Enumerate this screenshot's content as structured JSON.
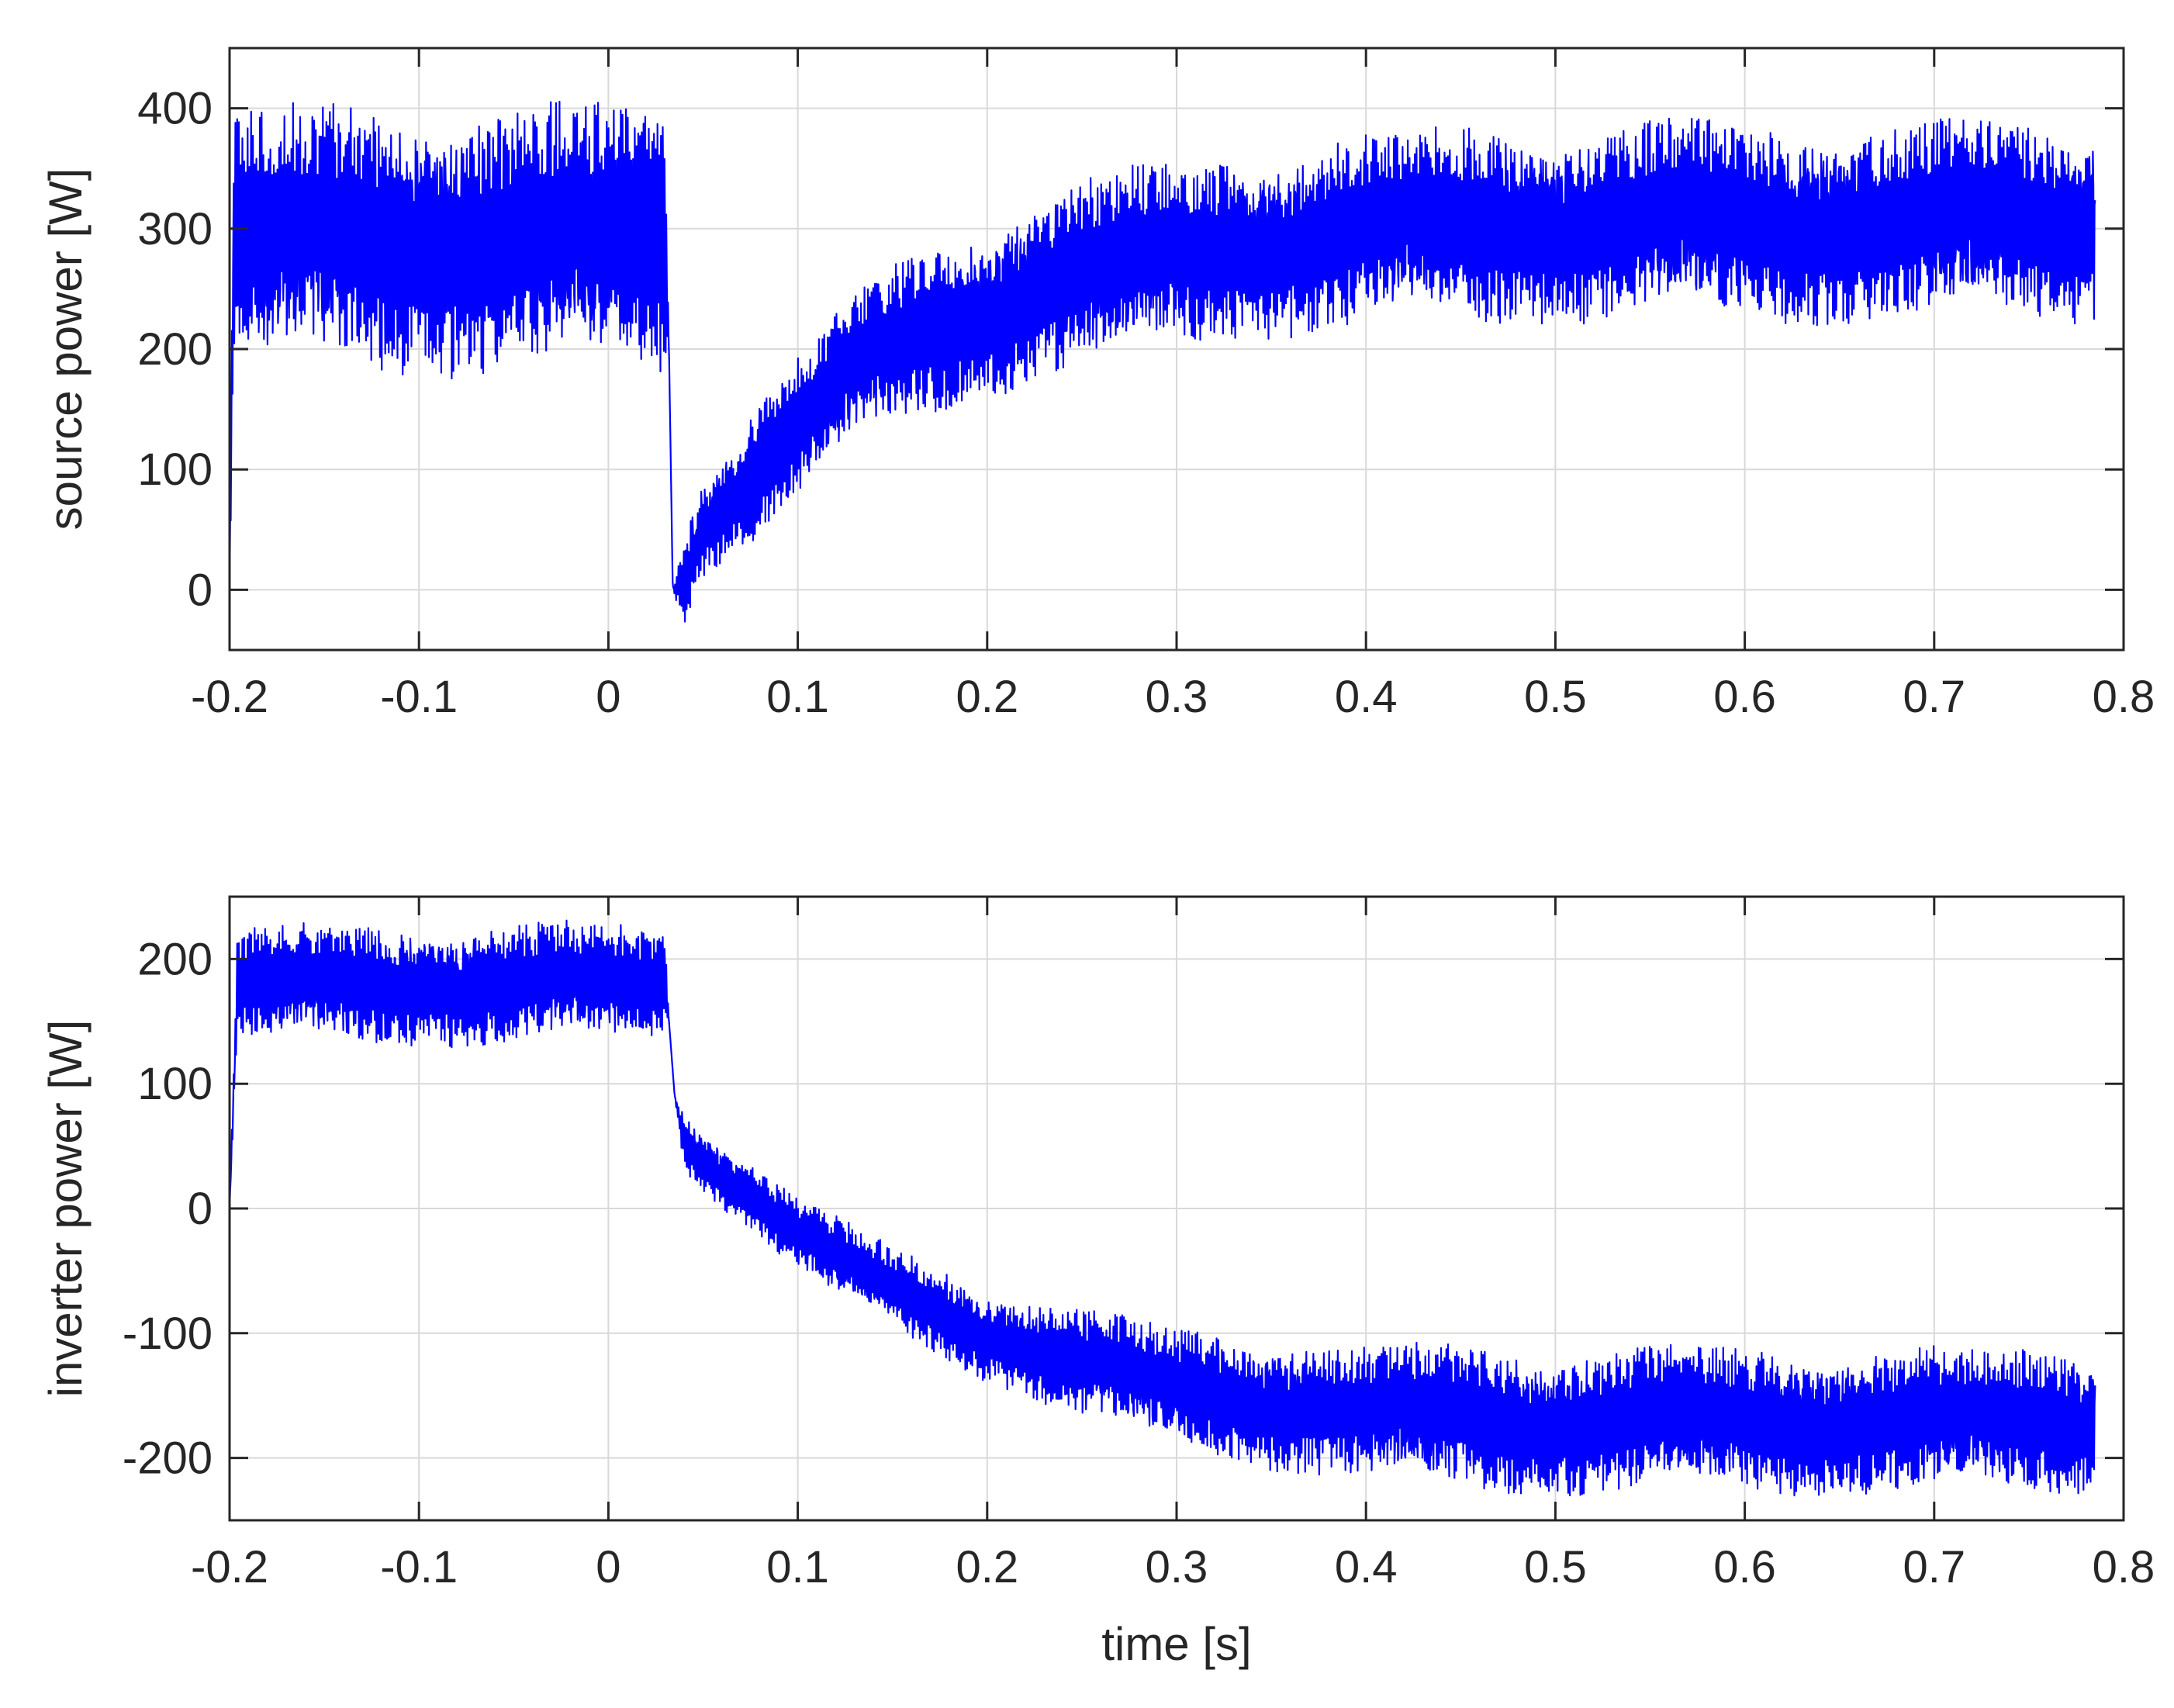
{
  "figure": {
    "line_color": "#0000ff",
    "grid_color": "#d9d9d9",
    "axis_color": "#262626"
  },
  "chart_data": [
    {
      "type": "line",
      "title": "",
      "xlabel": "",
      "ylabel": "source power [W]",
      "xlim": [
        -0.2,
        0.8
      ],
      "ylim": [
        -50,
        450
      ],
      "xticks": [
        -0.2,
        -0.1,
        0,
        0.1,
        0.2,
        0.3,
        0.4,
        0.5,
        0.6,
        0.7,
        0.8
      ],
      "xtick_labels": [
        "-0.2",
        "-0.1",
        "0",
        "0.1",
        "0.2",
        "0.3",
        "0.4",
        "0.5",
        "0.6",
        "0.7",
        "0.8"
      ],
      "yticks": [
        0,
        100,
        200,
        300,
        400
      ],
      "ytick_labels": [
        "0",
        "100",
        "200",
        "300",
        "400"
      ],
      "grid": true,
      "series": [
        {
          "color": "#0000ff",
          "x": [
            -0.2,
            -0.198,
            -0.19,
            -0.15,
            -0.1,
            -0.05,
            0,
            0.03,
            0.032,
            0.034,
            0.04,
            0.05,
            0.075,
            0.1,
            0.125,
            0.15,
            0.2,
            0.25,
            0.3,
            0.35,
            0.4,
            0.45,
            0.5,
            0.55,
            0.6,
            0.65,
            0.7,
            0.75,
            0.785
          ],
          "y": [
            0,
            285,
            290,
            290,
            292,
            290,
            288,
            290,
            200,
            0,
            10,
            55,
            95,
            135,
            175,
            200,
            235,
            262,
            278,
            290,
            298,
            302,
            305,
            305,
            305,
            305,
            305,
            305,
            305
          ],
          "ripple_band": [
            0,
            110,
            115,
            115,
            115,
            115,
            115,
            115,
            0,
            0,
            40,
            45,
            60,
            60,
            65,
            70,
            75,
            80,
            80,
            80,
            85,
            85,
            85,
            85,
            85,
            85,
            85,
            85,
            85
          ]
        }
      ]
    },
    {
      "type": "line",
      "title": "",
      "xlabel": "time [s]",
      "ylabel": "inverter power [W]",
      "xlim": [
        -0.2,
        0.8
      ],
      "ylim": [
        -250,
        250
      ],
      "xticks": [
        -0.2,
        -0.1,
        0,
        0.1,
        0.2,
        0.3,
        0.4,
        0.5,
        0.6,
        0.7,
        0.8
      ],
      "xtick_labels": [
        "-0.2",
        "-0.1",
        "0",
        "0.1",
        "0.2",
        "0.3",
        "0.4",
        "0.5",
        "0.6",
        "0.7",
        "0.8"
      ],
      "yticks": [
        -200,
        -100,
        0,
        100,
        200
      ],
      "ytick_labels": [
        "-200",
        "-100",
        "0",
        "100",
        "200"
      ],
      "grid": true,
      "series": [
        {
          "color": "#0000ff",
          "x": [
            -0.2,
            -0.196,
            -0.19,
            -0.15,
            -0.1,
            -0.05,
            0,
            0.03,
            0.032,
            0.035,
            0.04,
            0.05,
            0.075,
            0.1,
            0.125,
            0.15,
            0.2,
            0.25,
            0.3,
            0.35,
            0.4,
            0.45,
            0.5,
            0.55,
            0.6,
            0.65,
            0.7,
            0.75,
            0.785
          ],
          "y": [
            0,
            175,
            180,
            180,
            180,
            180,
            180,
            180,
            150,
            90,
            55,
            40,
            10,
            -20,
            -45,
            -65,
            -100,
            -125,
            -145,
            -155,
            -165,
            -168,
            -170,
            -170,
            -170,
            -170,
            -170,
            -170,
            -170
          ],
          "ripple_band": [
            0,
            45,
            50,
            50,
            50,
            50,
            50,
            45,
            0,
            0,
            25,
            25,
            30,
            30,
            35,
            35,
            40,
            45,
            50,
            55,
            55,
            60,
            60,
            60,
            60,
            60,
            60,
            60,
            60
          ]
        }
      ]
    }
  ]
}
